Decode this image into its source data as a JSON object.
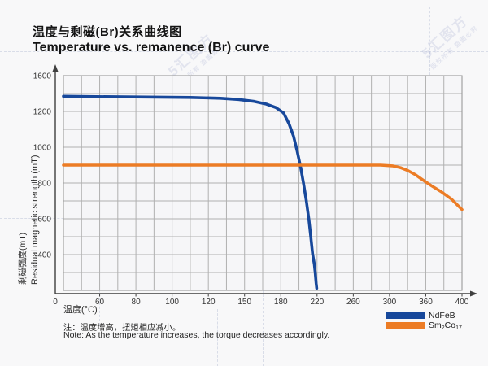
{
  "page": {
    "background": "#f8f8f9"
  },
  "header": {
    "title_zh": "温度与剩磁(Br)关系曲线图",
    "title_en": "Temperature vs. remanence (Br) curve"
  },
  "watermark": {
    "brand": "5汇图方",
    "notice": "版权所有 盗图必究"
  },
  "note": {
    "zh": "注：温度增高，扭矩相应减小。",
    "en": "Note: As the temperature increases, the torque decreases accordingly."
  },
  "legend": {
    "items": [
      {
        "label": "NdFeB",
        "color": "#17489B"
      },
      {
        "label": "Sm2Co17",
        "color": "#EC7C25",
        "parts": {
          "b1": "Sm",
          "s1": "2",
          "b2": "Co",
          "s2": "17"
        }
      }
    ]
  },
  "chart_data": {
    "type": "line",
    "title_zh": "温度与剩磁(Br)关系曲线图",
    "title_en": "Temperature vs. remanence (Br) curve",
    "xlabel": "温度(°C)",
    "ylabel_zh": "剩磁强度(mT)",
    "ylabel_en": "Residual magnetic strength (mT)",
    "grid": true,
    "legend_position": "bottom-right",
    "tick_spacing": "uniform",
    "x_ticks": {
      "values": [
        0,
        60,
        80,
        100,
        120,
        150,
        180,
        220,
        260,
        300,
        360,
        400
      ],
      "labels": [
        "0",
        "60",
        "80",
        "100",
        "120",
        "150",
        "180",
        "220",
        "260",
        "300",
        "360",
        "400"
      ]
    },
    "y_ticks": {
      "values": [
        1600,
        1200,
        1000,
        800,
        600,
        400,
        0
      ],
      "labels": [
        "1600",
        "1200",
        "1000",
        "800",
        "600",
        "400",
        "0"
      ]
    },
    "colors": {
      "grid": "#b0b0b0",
      "axis": "#3f3f3f",
      "plot_border": "#9b9b9b"
    },
    "series": [
      {
        "name": "NdFeB",
        "color": "#17489B",
        "points": [
          [
            0,
            1370
          ],
          [
            40,
            1366
          ],
          [
            80,
            1362
          ],
          [
            110,
            1356
          ],
          [
            130,
            1347
          ],
          [
            145,
            1334
          ],
          [
            158,
            1312
          ],
          [
            168,
            1282
          ],
          [
            176,
            1243
          ],
          [
            183,
            1192
          ],
          [
            189,
            1132
          ],
          [
            194,
            1062
          ],
          [
            198,
            980
          ],
          [
            202,
            885
          ],
          [
            205,
            800
          ],
          [
            208,
            705
          ],
          [
            211,
            595
          ],
          [
            213,
            505
          ],
          [
            215,
            405
          ],
          [
            217,
            290
          ],
          [
            218,
            195
          ],
          [
            219,
            80
          ],
          [
            219.6,
            25
          ]
        ]
      },
      {
        "name": "Sm2Co17",
        "color": "#EC7C25",
        "points": [
          [
            0,
            900
          ],
          [
            60,
            900
          ],
          [
            120,
            900
          ],
          [
            180,
            900
          ],
          [
            240,
            900
          ],
          [
            290,
            900
          ],
          [
            305,
            896
          ],
          [
            318,
            886
          ],
          [
            330,
            870
          ],
          [
            342,
            848
          ],
          [
            354,
            820
          ],
          [
            366,
            786
          ],
          [
            378,
            748
          ],
          [
            388,
            712
          ],
          [
            400,
            652
          ]
        ]
      }
    ]
  }
}
